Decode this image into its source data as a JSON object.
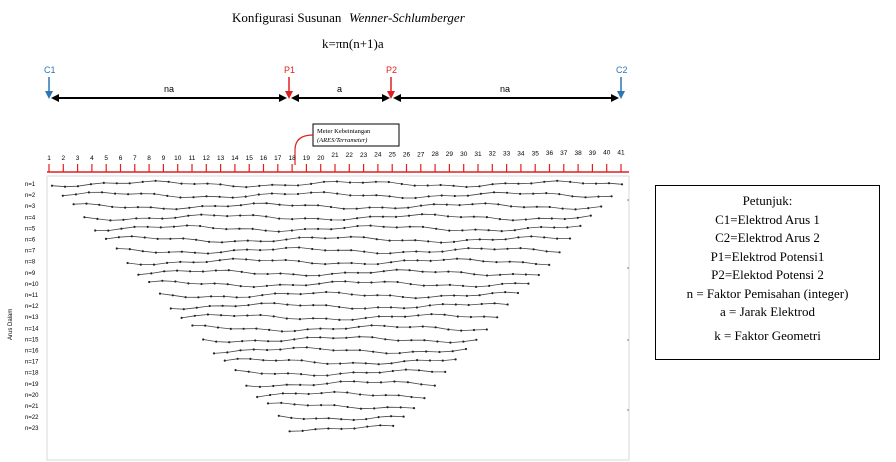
{
  "title": {
    "prefix": "Konfigurasi Susunan",
    "italic": "Wenner-Schlumberger",
    "formula": "k=πn(n+1)a"
  },
  "electrodes": {
    "c1": "C1",
    "p1": "P1",
    "p2": "P2",
    "c2": "C2",
    "span_left": "na",
    "span_mid": "a",
    "span_right": "na",
    "colors": {
      "current": "#2e75b6",
      "potential": "#e02020",
      "span": "#000000"
    }
  },
  "meter": {
    "line1": "Meter Kebeintangan",
    "line2": "(ARES/Terrameter)"
  },
  "ruler": {
    "labels": [
      "1",
      "2",
      "3",
      "4",
      "5",
      "6",
      "7",
      "8",
      "9",
      "10",
      "11",
      "12",
      "13",
      "14",
      "15",
      "16",
      "17",
      "18",
      "19",
      "20",
      "21",
      "22",
      "23",
      "24",
      "25",
      "26",
      "27",
      "28",
      "29",
      "30",
      "31",
      "32",
      "33",
      "34",
      "35",
      "36",
      "37",
      "38",
      "39",
      "40",
      "41"
    ],
    "color": "#e02020"
  },
  "depth_axis": {
    "label": "Arus Dalam",
    "levels": [
      "n=1",
      "n=2",
      "n=3",
      "n=4",
      "n=5",
      "n=6",
      "n=7",
      "n=8",
      "n=9",
      "n=10",
      "n=11",
      "n=12",
      "n=13",
      "n=14",
      "n=15",
      "n=16",
      "n=17",
      "n=18",
      "n=19",
      "n=20",
      "n=21",
      "n=22",
      "n=23"
    ]
  },
  "legend": {
    "title": "Petunjuk:",
    "lines": [
      "C1=Elektrod Arus 1",
      "C2=Elektrod Arus 2",
      "P1=Elektrod Potensi1",
      "P2=Elektod Potensi 2",
      "n = Faktor Pemisahan (integer)",
      "a = Jarak Elektrod",
      "k = Faktor Geometri"
    ]
  }
}
